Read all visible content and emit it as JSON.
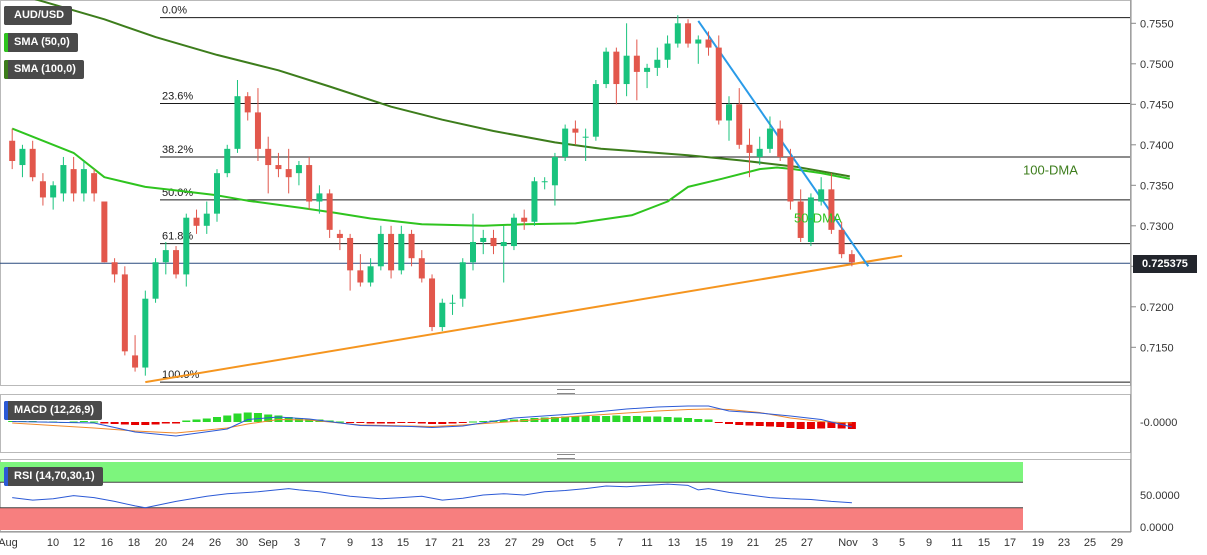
{
  "tags": {
    "symbol": "AUD/USD",
    "sma50": "SMA (50,0)",
    "sma100": "SMA (100,0)",
    "macd": "MACD (12,26,9)",
    "rsi": "RSI (14,70,30,1)"
  },
  "colors": {
    "bull": "#19c37d",
    "bear": "#e2574c",
    "sma50": "#2fc41f",
    "sma100": "#3d7d1c",
    "trend_up": "#f5951f",
    "trend_down": "#2a9be8",
    "macd_line": "#2c5ad6",
    "signal_line": "#f08a2c",
    "hist_up": "#2ad82a",
    "hist_down": "#e50000",
    "rsi_line": "#2c5ad6",
    "overbought_fill": "#7df57d",
    "oversold_fill": "#f77f7f"
  },
  "price_badge": "0.725375",
  "chart_data": [
    {
      "type": "candlestick",
      "pair": "AUD/USD",
      "timeframe": "daily",
      "y_ticks": [
        "0.7550",
        "0.7500",
        "0.7450",
        "0.7400",
        "0.7350",
        "0.7300",
        "0.7250",
        "0.7200",
        "0.7150"
      ],
      "ylim": [
        0.71,
        0.758
      ],
      "x_ticks": [
        "Aug",
        "10",
        "12",
        "16",
        "18",
        "20",
        "24",
        "26",
        "30",
        "Sep",
        "3",
        "7",
        "9",
        "13",
        "15",
        "17",
        "21",
        "23",
        "27",
        "29",
        "Oct",
        "5",
        "7",
        "11",
        "13",
        "15",
        "19",
        "21",
        "25",
        "27",
        "Nov",
        "3",
        "5",
        "9",
        "11",
        "15",
        "17",
        "19",
        "23",
        "25",
        "29"
      ],
      "current_price": 0.725375,
      "fib_levels": [
        {
          "label": "0.0%",
          "value": 0.7557
        },
        {
          "label": "23.6%",
          "value": 0.7451
        },
        {
          "label": "38.2%",
          "value": 0.7385
        },
        {
          "label": "50.0%",
          "value": 0.7332
        },
        {
          "label": "61.8%",
          "value": 0.7278
        },
        {
          "label": "100.0%",
          "value": 0.7107
        }
      ],
      "annotations": [
        {
          "text": "100-DMA",
          "value": 0.7368
        },
        {
          "text": "50-DMA",
          "value": 0.731
        }
      ],
      "candles": [
        [
          0.7405,
          0.742,
          0.737,
          0.738
        ],
        [
          0.7375,
          0.74,
          0.736,
          0.7395
        ],
        [
          0.7395,
          0.7405,
          0.7355,
          0.736
        ],
        [
          0.7355,
          0.7365,
          0.7325,
          0.7335
        ],
        [
          0.7335,
          0.7355,
          0.732,
          0.735
        ],
        [
          0.734,
          0.7385,
          0.733,
          0.7375
        ],
        [
          0.737,
          0.7385,
          0.733,
          0.734
        ],
        [
          0.734,
          0.738,
          0.733,
          0.737
        ],
        [
          0.7365,
          0.737,
          0.733,
          0.734
        ],
        [
          0.733,
          0.733,
          0.7255,
          0.7255
        ],
        [
          0.7255,
          0.726,
          0.723,
          0.724
        ],
        [
          0.724,
          0.725,
          0.714,
          0.7145
        ],
        [
          0.714,
          0.7165,
          0.712,
          0.7125
        ],
        [
          0.7125,
          0.722,
          0.7115,
          0.721
        ],
        [
          0.721,
          0.726,
          0.7205,
          0.7255
        ],
        [
          0.7255,
          0.728,
          0.724,
          0.727
        ],
        [
          0.727,
          0.7275,
          0.7235,
          0.724
        ],
        [
          0.724,
          0.7315,
          0.7225,
          0.731
        ],
        [
          0.731,
          0.732,
          0.729,
          0.73
        ],
        [
          0.73,
          0.733,
          0.729,
          0.7315
        ],
        [
          0.7315,
          0.737,
          0.7305,
          0.7365
        ],
        [
          0.7365,
          0.74,
          0.736,
          0.7395
        ],
        [
          0.7395,
          0.748,
          0.739,
          0.746
        ],
        [
          0.746,
          0.7465,
          0.743,
          0.744
        ],
        [
          0.744,
          0.747,
          0.738,
          0.7395
        ],
        [
          0.7395,
          0.741,
          0.734,
          0.7375
        ],
        [
          0.7375,
          0.739,
          0.736,
          0.737
        ],
        [
          0.737,
          0.7395,
          0.734,
          0.736
        ],
        [
          0.7365,
          0.738,
          0.735,
          0.7375
        ],
        [
          0.7375,
          0.7385,
          0.732,
          0.733
        ],
        [
          0.733,
          0.735,
          0.7315,
          0.734
        ],
        [
          0.734,
          0.7345,
          0.7285,
          0.7295
        ],
        [
          0.729,
          0.7295,
          0.727,
          0.7285
        ],
        [
          0.7285,
          0.729,
          0.722,
          0.7245
        ],
        [
          0.7245,
          0.7265,
          0.7225,
          0.723
        ],
        [
          0.723,
          0.726,
          0.7225,
          0.725
        ],
        [
          0.725,
          0.73,
          0.7245,
          0.729
        ],
        [
          0.729,
          0.73,
          0.7235,
          0.7245
        ],
        [
          0.7245,
          0.73,
          0.724,
          0.729
        ],
        [
          0.729,
          0.7295,
          0.725,
          0.726
        ],
        [
          0.726,
          0.727,
          0.723,
          0.7235
        ],
        [
          0.7235,
          0.724,
          0.717,
          0.7175
        ],
        [
          0.7175,
          0.721,
          0.717,
          0.7205
        ],
        [
          0.7205,
          0.7215,
          0.719,
          0.7205
        ],
        [
          0.721,
          0.726,
          0.72,
          0.7255
        ],
        [
          0.7255,
          0.7315,
          0.7245,
          0.728
        ],
        [
          0.728,
          0.7295,
          0.7265,
          0.7285
        ],
        [
          0.7285,
          0.7295,
          0.7265,
          0.7275
        ],
        [
          0.7275,
          0.73,
          0.723,
          0.728
        ],
        [
          0.7275,
          0.7315,
          0.727,
          0.731
        ],
        [
          0.731,
          0.732,
          0.7295,
          0.7305
        ],
        [
          0.7305,
          0.736,
          0.73,
          0.7355
        ],
        [
          0.7355,
          0.736,
          0.7345,
          0.7355
        ],
        [
          0.735,
          0.739,
          0.7325,
          0.7385
        ],
        [
          0.7385,
          0.7425,
          0.738,
          0.742
        ],
        [
          0.742,
          0.743,
          0.74,
          0.7415
        ],
        [
          0.741,
          0.742,
          0.738,
          0.741
        ],
        [
          0.741,
          0.748,
          0.7405,
          0.7475
        ],
        [
          0.7475,
          0.752,
          0.747,
          0.7515
        ],
        [
          0.7515,
          0.752,
          0.745,
          0.7475
        ],
        [
          0.7475,
          0.755,
          0.746,
          0.751
        ],
        [
          0.751,
          0.753,
          0.7455,
          0.749
        ],
        [
          0.749,
          0.75,
          0.747,
          0.7495
        ],
        [
          0.7495,
          0.752,
          0.7485,
          0.7505
        ],
        [
          0.7505,
          0.7535,
          0.7495,
          0.7525
        ],
        [
          0.7525,
          0.756,
          0.752,
          0.755
        ],
        [
          0.755,
          0.7555,
          0.752,
          0.7525
        ],
        [
          0.7525,
          0.7535,
          0.75,
          0.753
        ],
        [
          0.753,
          0.754,
          0.751,
          0.752
        ],
        [
          0.752,
          0.7535,
          0.7425,
          0.743
        ],
        [
          0.743,
          0.746,
          0.7405,
          0.745
        ],
        [
          0.745,
          0.747,
          0.7395,
          0.74
        ],
        [
          0.74,
          0.742,
          0.736,
          0.739
        ],
        [
          0.7385,
          0.741,
          0.7375,
          0.7395
        ],
        [
          0.7395,
          0.7435,
          0.739,
          0.742
        ],
        [
          0.742,
          0.743,
          0.738,
          0.7385
        ],
        [
          0.7385,
          0.7395,
          0.732,
          0.733
        ],
        [
          0.733,
          0.7345,
          0.728,
          0.7285
        ],
        [
          0.728,
          0.734,
          0.7275,
          0.7335
        ],
        [
          0.733,
          0.736,
          0.7325,
          0.7345
        ],
        [
          0.7345,
          0.7365,
          0.729,
          0.7295
        ],
        [
          0.7295,
          0.7305,
          0.726,
          0.7265
        ],
        [
          0.7265,
          0.727,
          0.725,
          0.7255
        ]
      ],
      "sma50": [
        [
          0.0,
          0.742
        ],
        [
          6.0,
          0.739
        ],
        [
          9.0,
          0.736
        ],
        [
          13.0,
          0.7348
        ],
        [
          16.5,
          0.7343
        ],
        [
          19.8,
          0.7338
        ],
        [
          23.0,
          0.7331
        ],
        [
          28.3,
          0.7322
        ],
        [
          31.5,
          0.7316
        ],
        [
          35.0,
          0.7309
        ],
        [
          40.0,
          0.7302
        ],
        [
          46.0,
          0.73
        ],
        [
          50.0,
          0.7302
        ],
        [
          55.0,
          0.7303
        ],
        [
          60.5,
          0.7313
        ],
        [
          64.0,
          0.733
        ],
        [
          66.0,
          0.7348
        ],
        [
          69.3,
          0.7358
        ],
        [
          73.0,
          0.737
        ],
        [
          74.7,
          0.7372
        ],
        [
          76.3,
          0.737
        ],
        [
          79.0,
          0.7365
        ],
        [
          81.8,
          0.7358
        ]
      ],
      "sma100": [
        [
          0.0,
          0.7588
        ],
        [
          9.0,
          0.7555
        ],
        [
          14.0,
          0.7533
        ],
        [
          20.0,
          0.7511
        ],
        [
          26.0,
          0.7492
        ],
        [
          31.0,
          0.7472
        ],
        [
          37.0,
          0.7447
        ],
        [
          42.0,
          0.7431
        ],
        [
          47.0,
          0.7417
        ],
        [
          53.0,
          0.7403
        ],
        [
          57.5,
          0.7395
        ],
        [
          62.0,
          0.7391
        ],
        [
          66.0,
          0.7387
        ],
        [
          71.0,
          0.7381
        ],
        [
          76.5,
          0.7373
        ],
        [
          81.8,
          0.7361
        ]
      ],
      "trend_up": [
        [
          13.0,
          0.7107
        ],
        [
          86.9,
          0.7263
        ]
      ],
      "trend_down": [
        [
          67.0,
          0.7553
        ],
        [
          83.6,
          0.725
        ]
      ],
      "macd": {
        "ticks": [
          "-0.0000"
        ],
        "histogram": [
          0.0002,
          0.0002,
          0.0002,
          0.0001,
          0.0001,
          0.0,
          0.0001,
          0.0002,
          0.0001,
          -0.0003,
          -0.0004,
          -0.0005,
          -0.0006,
          -0.0006,
          -0.0005,
          -0.0003,
          -0.0003,
          0.0003,
          0.0005,
          0.0007,
          0.001,
          0.0013,
          0.0017,
          0.0019,
          0.0018,
          0.0015,
          0.0013,
          0.001,
          0.0008,
          0.0006,
          0.0005,
          0.0003,
          0.0001,
          -0.0001,
          -0.0002,
          -0.0003,
          -0.0003,
          -0.0003,
          -0.0002,
          -0.0002,
          -0.0003,
          -0.0004,
          -0.0004,
          -0.0003,
          -0.0002,
          0.0001,
          0.0002,
          0.0003,
          0.0004,
          0.0005,
          0.0006,
          0.0008,
          0.0009,
          0.001,
          0.0011,
          0.0012,
          0.0012,
          0.0012,
          0.0012,
          0.0013,
          0.0012,
          0.0012,
          0.0011,
          0.0011,
          0.001,
          0.0009,
          0.0008,
          0.0006,
          0.0005,
          -0.0001,
          -0.0004,
          -0.0006,
          -0.0007,
          -0.0008,
          -0.0009,
          -0.001,
          -0.0012,
          -0.0014,
          -0.0014,
          -0.0013,
          -0.0012,
          -0.0013,
          -0.0014
        ],
        "macd_line": [
          [
            0,
            0.0001
          ],
          [
            8,
            -0.0002
          ],
          [
            12,
            -0.002
          ],
          [
            16,
            -0.0028
          ],
          [
            21,
            -0.0014
          ],
          [
            23,
            0.0005
          ],
          [
            26,
            0.001
          ],
          [
            29,
            0.0006
          ],
          [
            34,
            -0.0007
          ],
          [
            39,
            -0.0009
          ],
          [
            41,
            -0.0011
          ],
          [
            44,
            -0.0008
          ],
          [
            49,
            0.0008
          ],
          [
            54,
            0.0015
          ],
          [
            57,
            0.002
          ],
          [
            60,
            0.0026
          ],
          [
            63,
            0.003
          ],
          [
            66,
            0.0032
          ],
          [
            68,
            0.0032
          ],
          [
            70,
            0.0022
          ],
          [
            73,
            0.0018
          ],
          [
            76,
            0.0012
          ],
          [
            79,
            0.0005
          ],
          [
            82,
            -0.001
          ]
        ],
        "signal_line": [
          [
            0,
            -0.0002
          ],
          [
            8,
            -0.0012
          ],
          [
            12,
            -0.0018
          ],
          [
            16,
            -0.0022
          ],
          [
            21,
            -0.0012
          ],
          [
            23,
            -0.0004
          ],
          [
            26,
            0.0005
          ],
          [
            29,
            0.0004
          ],
          [
            34,
            -0.0006
          ],
          [
            39,
            -0.0008
          ],
          [
            41,
            -0.0009
          ],
          [
            44,
            -0.0006
          ],
          [
            49,
            0.0001
          ],
          [
            54,
            0.001
          ],
          [
            57,
            0.0014
          ],
          [
            60,
            0.0018
          ],
          [
            63,
            0.0022
          ],
          [
            66,
            0.0025
          ],
          [
            68,
            0.0026
          ],
          [
            70,
            0.0025
          ],
          [
            73,
            0.0019
          ],
          [
            76,
            0.0008
          ],
          [
            79,
            0.0001
          ],
          [
            82,
            -0.0002
          ]
        ]
      },
      "rsi": {
        "ticks": [
          "50.0000",
          "0.0000"
        ],
        "overbought": 70,
        "oversold": 30,
        "values": [
          [
            0,
            46
          ],
          [
            2,
            42
          ],
          [
            4,
            44
          ],
          [
            6,
            49
          ],
          [
            8,
            46
          ],
          [
            10,
            40
          ],
          [
            12,
            33
          ],
          [
            13,
            30
          ],
          [
            16,
            40
          ],
          [
            19,
            48
          ],
          [
            21,
            52
          ],
          [
            24,
            55
          ],
          [
            27,
            60
          ],
          [
            28,
            58
          ],
          [
            30,
            55
          ],
          [
            33,
            48
          ],
          [
            36,
            44
          ],
          [
            38,
            46
          ],
          [
            40,
            48
          ],
          [
            42,
            42
          ],
          [
            44,
            45
          ],
          [
            46,
            50
          ],
          [
            48,
            52
          ],
          [
            50,
            50
          ],
          [
            52,
            55
          ],
          [
            54,
            57
          ],
          [
            56,
            60
          ],
          [
            58,
            64
          ],
          [
            60,
            63
          ],
          [
            62,
            65
          ],
          [
            64,
            67
          ],
          [
            66,
            65
          ],
          [
            67,
            58
          ],
          [
            68,
            60
          ],
          [
            70,
            54
          ],
          [
            72,
            50
          ],
          [
            74,
            46
          ],
          [
            76,
            44
          ],
          [
            78,
            43
          ],
          [
            80,
            40
          ],
          [
            82,
            38
          ]
        ]
      }
    }
  ]
}
